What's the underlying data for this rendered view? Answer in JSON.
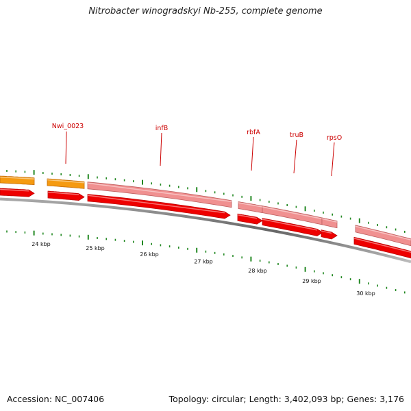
{
  "title": "Nitrobacter winogradskyi Nb-255, complete genome",
  "footer": {
    "accession": "Accession: NC_007406",
    "topology": "Topology: circular; Length: 3,402,093 bp; Genes: 3,176"
  },
  "colors": {
    "cds_forward": "#ee0000",
    "cds_forward_light": "#f09090",
    "other_gene": "#f59a10",
    "backbone": "#777777",
    "ticks": "#228822",
    "labels": "#cc0000"
  },
  "scale": {
    "labels": [
      "24 kbp",
      "25 kbp",
      "26 kbp",
      "27 kbp",
      "28 kbp",
      "29 kbp",
      "30 kbp"
    ]
  },
  "gene_labels": [
    "Nwi_0023",
    "infB",
    "rbfA",
    "truB",
    "rpsO"
  ]
}
